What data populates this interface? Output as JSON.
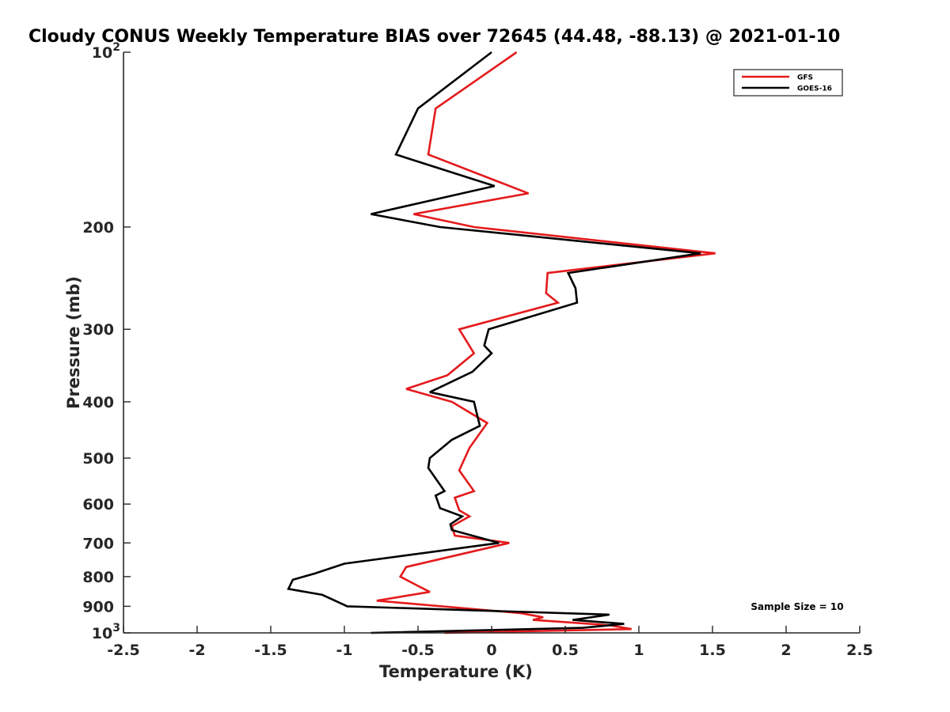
{
  "chart_data": {
    "type": "line",
    "title": "Cloudy CONUS Weekly Temperature BIAS over 72645 (44.48, -88.13) @ 2021-01-10",
    "xlabel": "Temperature (K)",
    "ylabel": "Pressure (mb)",
    "xlim": [
      -2.5,
      2.5
    ],
    "ylim": [
      100,
      1000
    ],
    "y_scale": "log",
    "y_reversed": true,
    "x_ticks": [
      {
        "value": -2.5,
        "label": "-2.5"
      },
      {
        "value": -2,
        "label": "-2"
      },
      {
        "value": -1.5,
        "label": "-1.5"
      },
      {
        "value": -1,
        "label": "-1"
      },
      {
        "value": -0.5,
        "label": "-0.5"
      },
      {
        "value": 0,
        "label": "0"
      },
      {
        "value": 0.5,
        "label": "0.5"
      },
      {
        "value": 1,
        "label": "1"
      },
      {
        "value": 1.5,
        "label": "1.5"
      },
      {
        "value": 2,
        "label": "2"
      },
      {
        "value": 2.5,
        "label": "2.5"
      }
    ],
    "y_ticks": [
      {
        "value": 100,
        "base": "10",
        "exp": "2"
      },
      {
        "value": 200,
        "base": "200",
        "exp": ""
      },
      {
        "value": 300,
        "base": "300",
        "exp": ""
      },
      {
        "value": 400,
        "base": "400",
        "exp": ""
      },
      {
        "value": 500,
        "base": "500",
        "exp": ""
      },
      {
        "value": 600,
        "base": "600",
        "exp": ""
      },
      {
        "value": 700,
        "base": "700",
        "exp": ""
      },
      {
        "value": 800,
        "base": "800",
        "exp": ""
      },
      {
        "value": 900,
        "base": "900",
        "exp": ""
      },
      {
        "value": 1000,
        "base": "10",
        "exp": "3"
      }
    ],
    "grid": false,
    "legend_position": "top-right",
    "annotation": "Sample Size = 10",
    "series": [
      {
        "name": "GFS",
        "color": "#e41a1c",
        "points": [
          {
            "x": 0.17,
            "y": 100
          },
          {
            "x": -0.38,
            "y": 125
          },
          {
            "x": -0.43,
            "y": 150
          },
          {
            "x": 0.25,
            "y": 175
          },
          {
            "x": -0.53,
            "y": 190
          },
          {
            "x": -0.12,
            "y": 200
          },
          {
            "x": 1.52,
            "y": 222
          },
          {
            "x": 0.38,
            "y": 240
          },
          {
            "x": 0.37,
            "y": 260
          },
          {
            "x": 0.45,
            "y": 270
          },
          {
            "x": -0.22,
            "y": 300
          },
          {
            "x": -0.12,
            "y": 330
          },
          {
            "x": -0.3,
            "y": 360
          },
          {
            "x": -0.58,
            "y": 380
          },
          {
            "x": -0.27,
            "y": 400
          },
          {
            "x": -0.03,
            "y": 435
          },
          {
            "x": -0.15,
            "y": 480
          },
          {
            "x": -0.22,
            "y": 525
          },
          {
            "x": -0.12,
            "y": 570
          },
          {
            "x": -0.25,
            "y": 585
          },
          {
            "x": -0.22,
            "y": 615
          },
          {
            "x": -0.15,
            "y": 630
          },
          {
            "x": -0.27,
            "y": 655
          },
          {
            "x": -0.25,
            "y": 680
          },
          {
            "x": 0.12,
            "y": 700
          },
          {
            "x": -0.58,
            "y": 770
          },
          {
            "x": -0.62,
            "y": 800
          },
          {
            "x": -0.5,
            "y": 830
          },
          {
            "x": -0.42,
            "y": 850
          },
          {
            "x": -0.78,
            "y": 880
          },
          {
            "x": 0.2,
            "y": 925
          },
          {
            "x": 0.35,
            "y": 940
          },
          {
            "x": 0.28,
            "y": 950
          },
          {
            "x": 0.8,
            "y": 970
          },
          {
            "x": 0.95,
            "y": 985
          },
          {
            "x": -0.32,
            "y": 1000
          }
        ]
      },
      {
        "name": "GOES-16",
        "color": "#000000",
        "points": [
          {
            "x": 0.0,
            "y": 100
          },
          {
            "x": -0.5,
            "y": 125
          },
          {
            "x": -0.65,
            "y": 150
          },
          {
            "x": 0.02,
            "y": 170
          },
          {
            "x": -0.82,
            "y": 190
          },
          {
            "x": -0.35,
            "y": 200
          },
          {
            "x": 1.42,
            "y": 222
          },
          {
            "x": 0.52,
            "y": 240
          },
          {
            "x": 0.57,
            "y": 255
          },
          {
            "x": 0.58,
            "y": 270
          },
          {
            "x": -0.02,
            "y": 300
          },
          {
            "x": -0.05,
            "y": 320
          },
          {
            "x": 0.0,
            "y": 330
          },
          {
            "x": -0.13,
            "y": 355
          },
          {
            "x": -0.42,
            "y": 385
          },
          {
            "x": -0.12,
            "y": 400
          },
          {
            "x": -0.08,
            "y": 440
          },
          {
            "x": -0.27,
            "y": 465
          },
          {
            "x": -0.42,
            "y": 500
          },
          {
            "x": -0.43,
            "y": 520
          },
          {
            "x": -0.32,
            "y": 570
          },
          {
            "x": -0.38,
            "y": 580
          },
          {
            "x": -0.35,
            "y": 610
          },
          {
            "x": -0.2,
            "y": 630
          },
          {
            "x": -0.28,
            "y": 650
          },
          {
            "x": -0.27,
            "y": 665
          },
          {
            "x": 0.05,
            "y": 700
          },
          {
            "x": -1.0,
            "y": 760
          },
          {
            "x": -1.2,
            "y": 790
          },
          {
            "x": -1.35,
            "y": 810
          },
          {
            "x": -1.38,
            "y": 840
          },
          {
            "x": -1.15,
            "y": 860
          },
          {
            "x": -0.98,
            "y": 900
          },
          {
            "x": 0.8,
            "y": 930
          },
          {
            "x": 0.55,
            "y": 950
          },
          {
            "x": 0.9,
            "y": 965
          },
          {
            "x": 0.62,
            "y": 980
          },
          {
            "x": -0.82,
            "y": 1000
          }
        ]
      }
    ]
  }
}
